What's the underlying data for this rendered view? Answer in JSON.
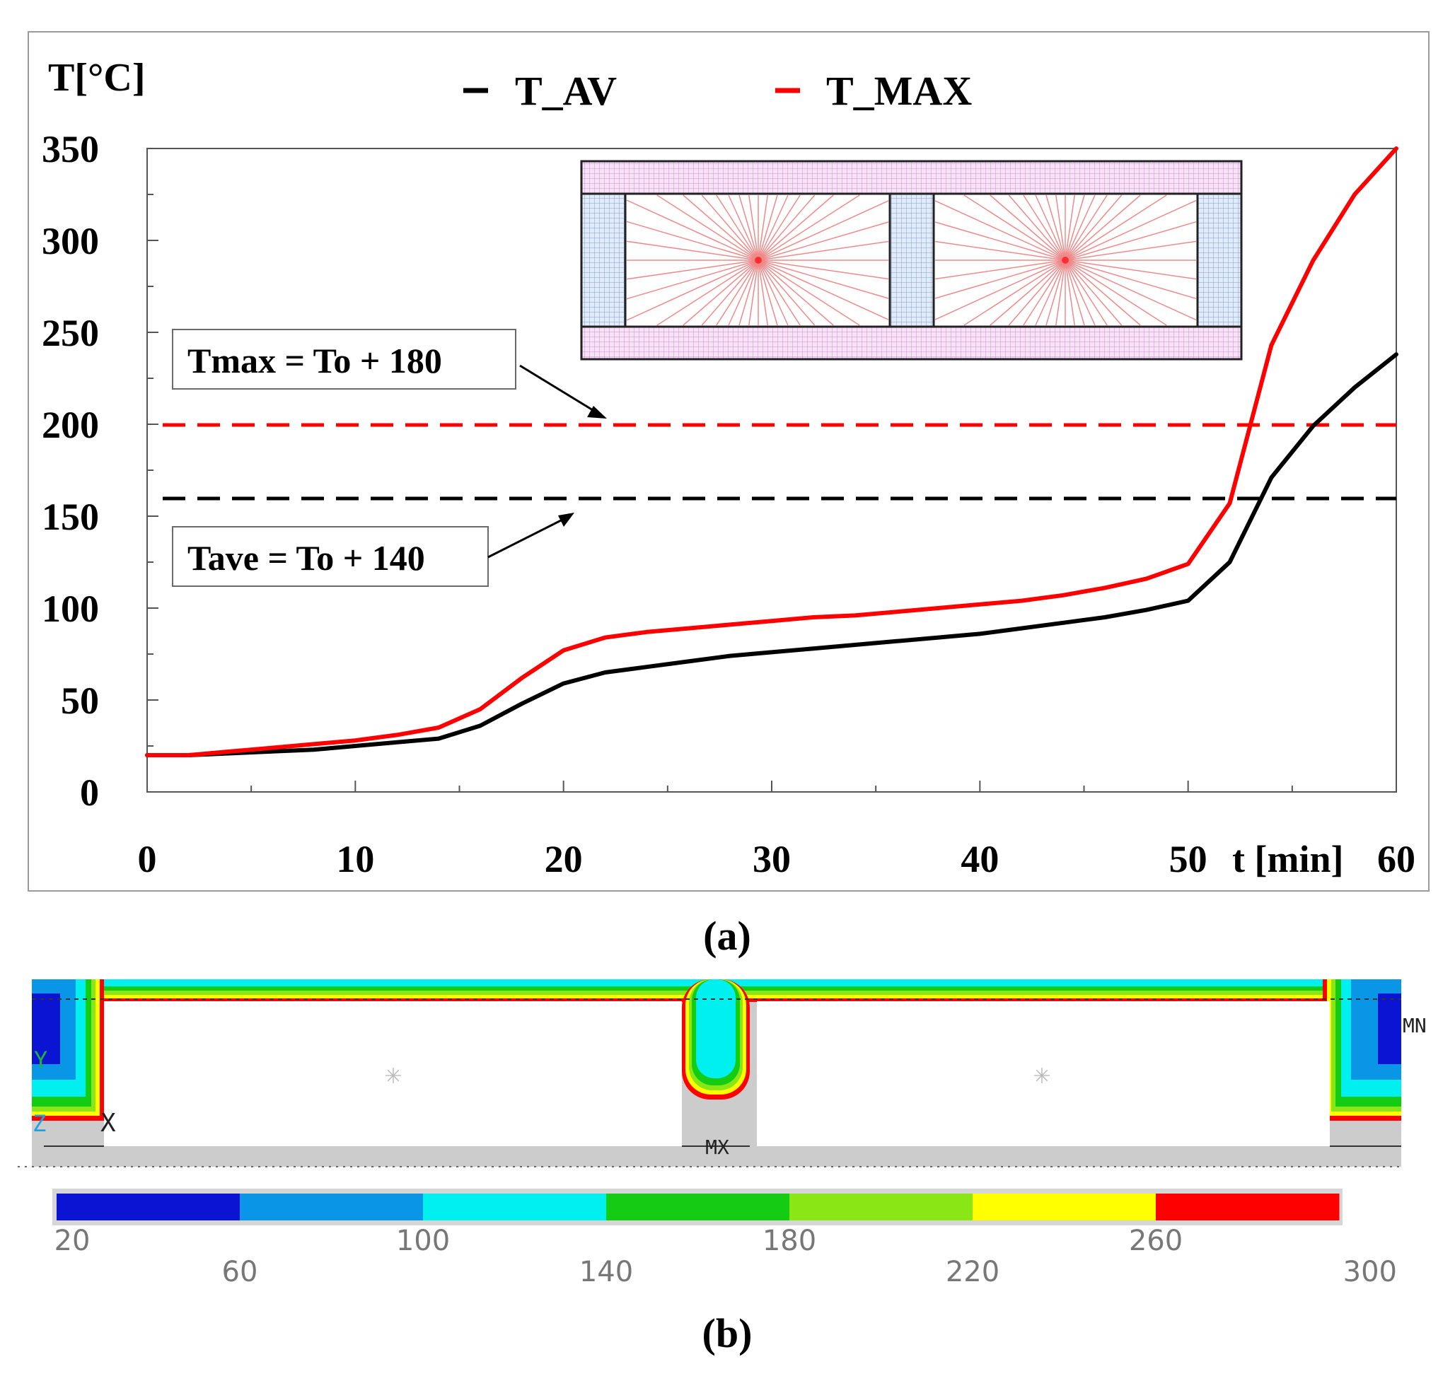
{
  "chart_data": [
    {
      "type": "line",
      "ylabel": "T[°C]",
      "xlabel": "t [min]",
      "xlim": [
        0,
        60
      ],
      "ylim": [
        0,
        350
      ],
      "x_ticks": [
        0,
        10,
        20,
        30,
        40,
        50,
        60
      ],
      "y_ticks": [
        0,
        50,
        100,
        150,
        200,
        250,
        300,
        350
      ],
      "legend_position": "top-center",
      "grid": false,
      "series": [
        {
          "name": "T_AV",
          "color": "#000000",
          "x": [
            0,
            2,
            4,
            6,
            8,
            10,
            12,
            14,
            16,
            18,
            20,
            22,
            24,
            26,
            28,
            30,
            32,
            34,
            36,
            38,
            40,
            42,
            44,
            46,
            48,
            50,
            52,
            54,
            56,
            58,
            60
          ],
          "y": [
            20,
            20,
            21,
            22,
            23,
            25,
            27,
            29,
            36,
            48,
            59,
            65,
            68,
            71,
            74,
            76,
            78,
            80,
            82,
            84,
            86,
            89,
            92,
            95,
            99,
            104,
            125,
            171,
            199,
            220,
            238
          ]
        },
        {
          "name": "T_MAX",
          "color": "#ff0000",
          "x": [
            0,
            2,
            4,
            6,
            8,
            10,
            12,
            14,
            16,
            18,
            20,
            22,
            24,
            26,
            28,
            30,
            32,
            34,
            36,
            38,
            40,
            42,
            44,
            46,
            48,
            50,
            52,
            54,
            56,
            58,
            60
          ],
          "y": [
            20,
            20,
            22,
            24,
            26,
            28,
            31,
            35,
            45,
            62,
            77,
            84,
            87,
            89,
            91,
            93,
            95,
            96,
            98,
            100,
            102,
            104,
            107,
            111,
            116,
            124,
            157,
            243,
            289,
            325,
            350
          ]
        }
      ],
      "reference_lines": [
        {
          "y": 200,
          "color": "#ff0000",
          "style": "dashed",
          "label": "Tmax = To + 180"
        },
        {
          "y": 160,
          "color": "#000000",
          "style": "dashed",
          "label": "Tave = To + 140"
        }
      ],
      "panel_label": "(a)"
    },
    {
      "type": "heatmap",
      "colorbar": {
        "colors": [
          "#0a14d2",
          "#0a96e6",
          "#00f0f0",
          "#14cc14",
          "#8ae614",
          "#ffff00",
          "#ff0000"
        ],
        "tick_labels": [
          "20",
          "60",
          "100",
          "140",
          "180",
          "220",
          "260",
          "300"
        ]
      },
      "markers": {
        "min": "MN",
        "max": "MX",
        "y_axis": "Y",
        "x_axis": "X",
        "z_axis": "Z"
      },
      "panel_label": "(b)"
    }
  ]
}
